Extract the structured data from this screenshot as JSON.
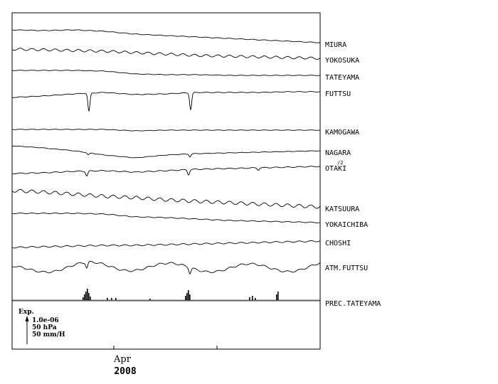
{
  "chart_data": {
    "type": "line",
    "x_axis": {
      "tick_label": "Apr",
      "year_label": "2008"
    },
    "scale_legend": {
      "title": "Exp.",
      "lines": [
        "1.0e-06",
        "50 hPa",
        "50 mm/H"
      ]
    },
    "series": [
      {
        "name": "MIURA",
        "y": [
          42,
          43,
          42,
          44,
          48,
          50,
          52,
          54,
          56,
          58,
          60
        ]
      },
      {
        "name": "YOKOSUKA",
        "y": [
          69,
          70,
          71,
          72,
          74,
          76,
          78,
          79,
          80,
          81,
          82
        ]
      },
      {
        "name": "TATEYAMA",
        "y": [
          99,
          99,
          99,
          100,
          104,
          105,
          105,
          106,
          106,
          106,
          106
        ]
      },
      {
        "name": "FUTTSU",
        "y": [
          137,
          135,
          132,
          130,
          133,
          132,
          130,
          130,
          130,
          129,
          129
        ]
      },
      {
        "name": "KAMOGAWA",
        "y": [
          182,
          182,
          182,
          182,
          184,
          183,
          183,
          183,
          183,
          183,
          183
        ]
      },
      {
        "name": "NAGARA",
        "note": "/2",
        "y": [
          205,
          208,
          212,
          218,
          222,
          218,
          216,
          215,
          214,
          213,
          212
        ]
      },
      {
        "name": "OTAKI",
        "y": [
          244,
          243,
          241,
          240,
          242,
          240,
          238,
          237,
          236,
          235,
          234
        ]
      },
      {
        "name": "KATSUURA",
        "y": [
          268,
          270,
          273,
          276,
          278,
          281,
          283,
          285,
          287,
          289,
          291
        ]
      },
      {
        "name": "YOKAICHIBA",
        "y": [
          300,
          300,
          300,
          301,
          305,
          306,
          308,
          310,
          311,
          312,
          313
        ]
      },
      {
        "name": "CHOSHI",
        "y": [
          348,
          347,
          346,
          345,
          345,
          344,
          343,
          342,
          341,
          340,
          339
        ]
      },
      {
        "name": "ATM.FUTTSU",
        "y": [
          380,
          377,
          375,
          374,
          375,
          376,
          376,
          377,
          377,
          376,
          374
        ]
      },
      {
        "name": "PREC.TATEYAMA",
        "y": [
          422,
          422,
          422,
          422,
          422,
          422,
          422,
          422,
          422,
          422,
          422
        ]
      }
    ]
  }
}
